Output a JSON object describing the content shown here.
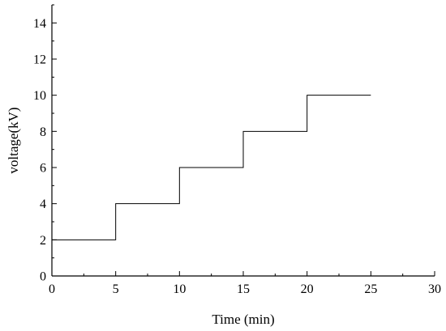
{
  "chart_data": {
    "type": "line",
    "title": "",
    "xlabel": "Time (min)",
    "ylabel": "voltage(kV)",
    "xlim": [
      0,
      30
    ],
    "ylim": [
      0,
      15
    ],
    "x_ticks": [
      0,
      5,
      10,
      15,
      20,
      25,
      30
    ],
    "y_ticks": [
      0,
      2,
      4,
      6,
      8,
      10,
      12,
      14
    ],
    "grid": false,
    "legend": "none",
    "line_color": "#000000",
    "series": [
      {
        "step": "post",
        "x": [
          0,
          5,
          10,
          15,
          20,
          25
        ],
        "y": [
          2,
          4,
          6,
          8,
          10,
          10
        ]
      }
    ]
  }
}
